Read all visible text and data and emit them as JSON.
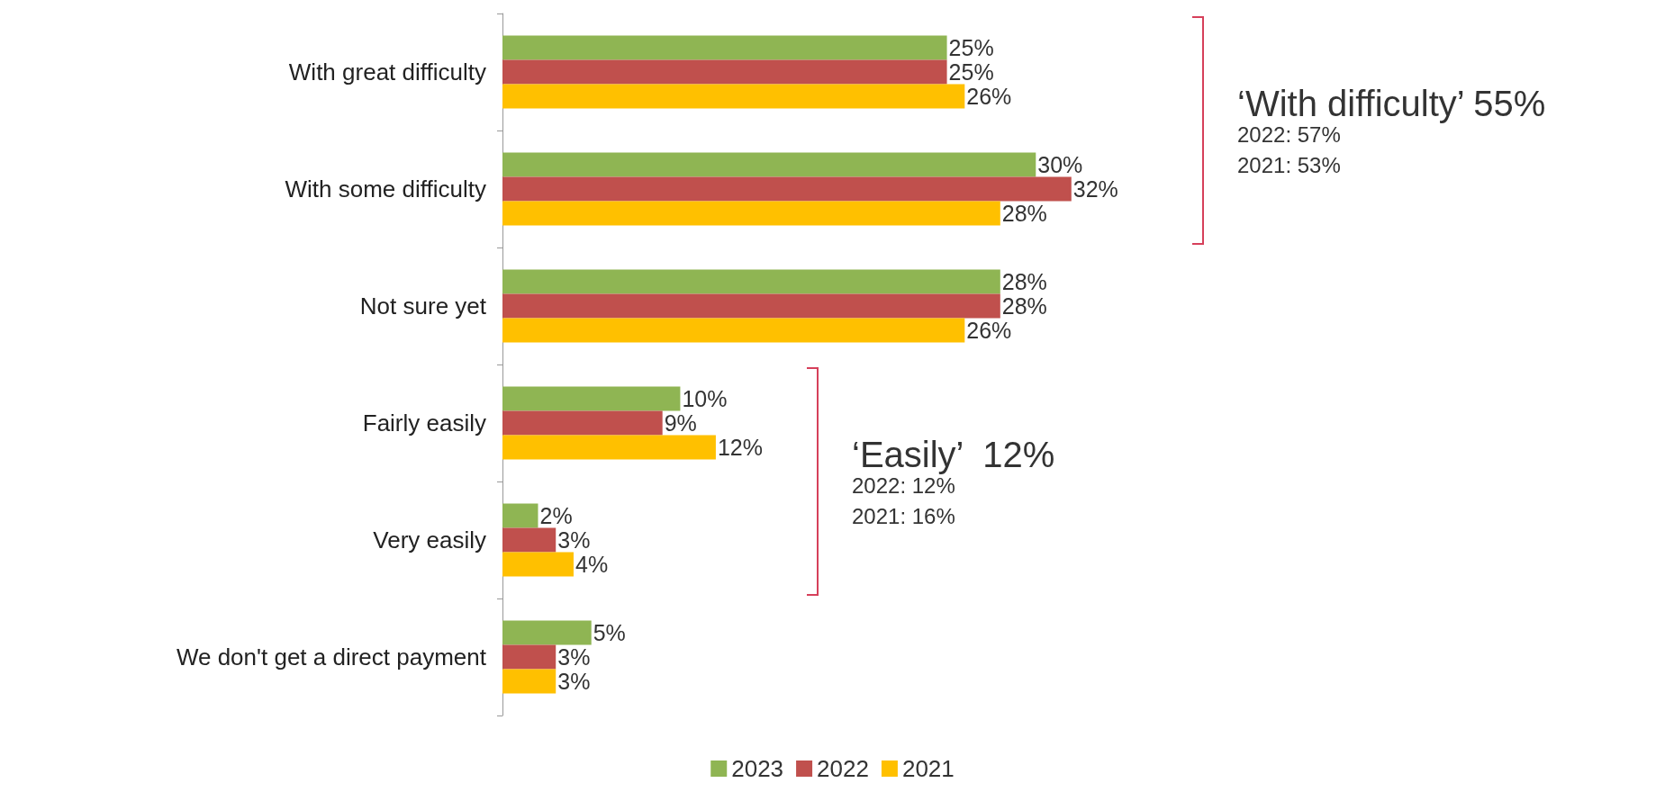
{
  "chart_data": {
    "type": "bar",
    "orientation": "horizontal",
    "categories": [
      "With great difficulty",
      "With some difficulty",
      "Not sure yet",
      "Fairly easily",
      "Very easily",
      "We don't get a direct payment"
    ],
    "series": [
      {
        "name": "2023",
        "color": "#8fb553",
        "values": [
          25,
          30,
          28,
          10,
          2,
          5
        ],
        "value_labels": [
          "25%",
          "30%",
          "28%",
          "10%",
          "2%",
          "5%"
        ]
      },
      {
        "name": "2022",
        "color": "#c0504d",
        "values": [
          25,
          32,
          28,
          9,
          3,
          3
        ],
        "value_labels": [
          "25%",
          "32%",
          "28%",
          "9%",
          "3%",
          "3%"
        ]
      },
      {
        "name": "2021",
        "color": "#ffc000",
        "values": [
          26,
          28,
          26,
          12,
          4,
          3
        ],
        "value_labels": [
          "26%",
          "28%",
          "26%",
          "12%",
          "4%",
          "3%"
        ]
      }
    ],
    "annotations": [
      "‘With difficulty’ 55%",
      "2022: 57%",
      "2021: 53%",
      "‘Easily’  12%",
      "2022: 12%",
      "2021: 16%"
    ],
    "legend": "bottom"
  }
}
